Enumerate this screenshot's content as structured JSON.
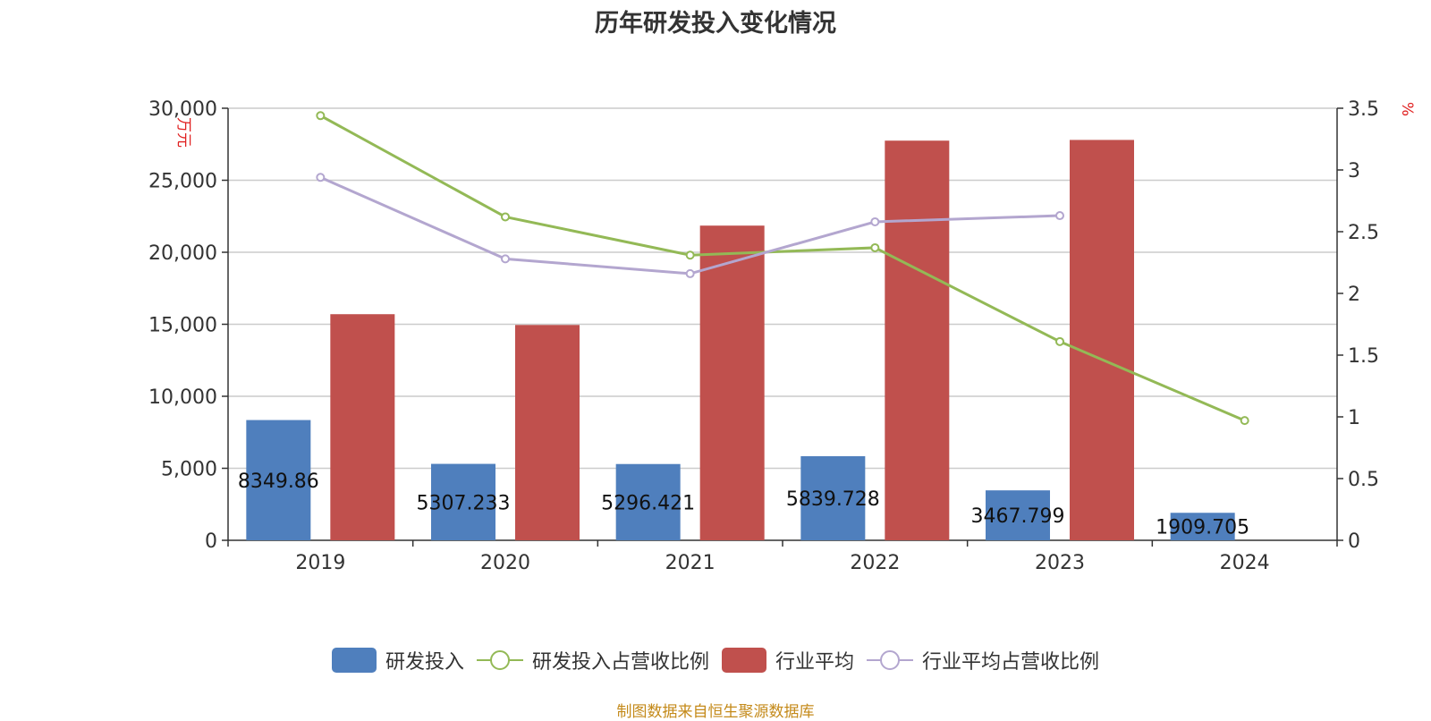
{
  "title": "历年研发投入变化情况",
  "source_note": "制图数据来自恒生聚源数据库",
  "chart_data": {
    "type": "bar",
    "title": "历年研发投入变化情况",
    "categories": [
      "2019",
      "2020",
      "2021",
      "2022",
      "2023",
      "2024"
    ],
    "y_left": {
      "label": "万元",
      "ylim": [
        0,
        30000
      ],
      "ticks": [
        "0",
        "5,000",
        "10,000",
        "15,000",
        "20,000",
        "25,000",
        "30,000"
      ],
      "tick_values": [
        0,
        5000,
        10000,
        15000,
        20000,
        25000,
        30000
      ]
    },
    "y_right": {
      "label": "%",
      "ylim": [
        0,
        3.5
      ],
      "ticks": [
        "0",
        "0.5",
        "1",
        "1.5",
        "2",
        "2.5",
        "3",
        "3.5"
      ],
      "tick_values": [
        0,
        0.5,
        1,
        1.5,
        2,
        2.5,
        3,
        3.5
      ]
    },
    "grid": true,
    "legend_position": "bottom",
    "series": [
      {
        "name": "研发投入",
        "type": "bar",
        "axis": "left",
        "color": "#4f7fbd",
        "values": [
          8349.86,
          5307.233,
          5296.421,
          5839.728,
          3467.799,
          1909.705
        ],
        "labels": [
          "8349.86",
          "5307.233",
          "5296.421",
          "5839.728",
          "3467.799",
          "1909.705"
        ]
      },
      {
        "name": "研发投入占营收比例",
        "type": "line",
        "axis": "right",
        "color": "#93b956",
        "values": [
          3.44,
          2.62,
          2.31,
          2.37,
          1.61,
          0.97
        ]
      },
      {
        "name": "行业平均",
        "type": "bar",
        "axis": "left",
        "color": "#c0504d",
        "values": [
          15700,
          14950,
          21850,
          27750,
          27800,
          null
        ]
      },
      {
        "name": "行业平均占营收比例",
        "type": "line",
        "axis": "right",
        "color": "#b3a6cf",
        "values": [
          2.94,
          2.28,
          2.16,
          2.58,
          2.63,
          null
        ]
      }
    ]
  }
}
